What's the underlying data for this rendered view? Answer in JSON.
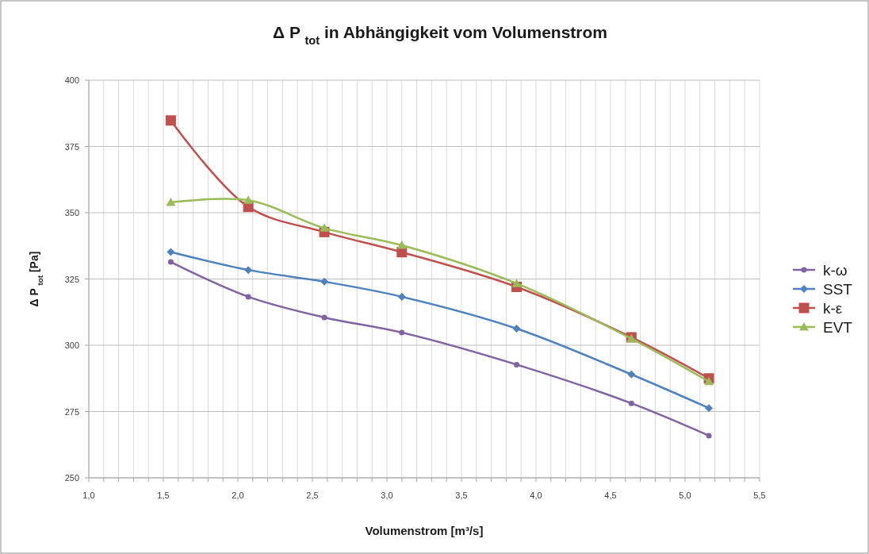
{
  "chart_data": {
    "type": "line",
    "title": "Δ P $_{tot}$ in Abhängigkeit vom Volumenstrom",
    "xlabel": "Volumenstrom  [m³/s]",
    "ylabel": "Δ P $_{tot}$  [Pa]",
    "x": [
      1.55,
      2.07,
      2.58,
      3.1,
      3.87,
      4.64,
      5.16
    ],
    "series": [
      {
        "name": "k-ω",
        "color": "#8064a2",
        "marker": "circle",
        "values": [
          331.4,
          318.3,
          310.5,
          304.8,
          292.7,
          278.1,
          265.9
        ]
      },
      {
        "name": "SST",
        "color": "#4f81bd",
        "marker": "diamond",
        "values": [
          335.2,
          328.4,
          324.0,
          318.3,
          306.3,
          289.0,
          276.3
        ]
      },
      {
        "name": "k-ε",
        "color": "#c0504d",
        "marker": "square",
        "values": [
          384.8,
          352.2,
          342.7,
          335.1,
          322.0,
          303.0,
          287.5
        ]
      },
      {
        "name": "EVT",
        "color": "#9bbb59",
        "marker": "triangle",
        "values": [
          353.9,
          354.7,
          344.2,
          337.7,
          323.3,
          302.5,
          286.3
        ]
      }
    ],
    "xlim": [
      1.0,
      5.5
    ],
    "xticks": [
      {
        "value": 1.0,
        "label": "1,0"
      },
      {
        "value": 1.1,
        "label": null
      },
      {
        "value": 1.2,
        "label": null
      },
      {
        "value": 1.3,
        "label": null
      },
      {
        "value": 1.4,
        "label": null
      },
      {
        "value": 1.5,
        "label": "1,5"
      },
      {
        "value": 1.6,
        "label": null
      },
      {
        "value": 1.7,
        "label": null
      },
      {
        "value": 1.8,
        "label": null
      },
      {
        "value": 1.9,
        "label": null
      },
      {
        "value": 2.0,
        "label": "2,0"
      },
      {
        "value": 2.1,
        "label": null
      },
      {
        "value": 2.2,
        "label": null
      },
      {
        "value": 2.3,
        "label": null
      },
      {
        "value": 2.4,
        "label": null
      },
      {
        "value": 2.5,
        "label": "2,5"
      },
      {
        "value": 2.6,
        "label": null
      },
      {
        "value": 2.7,
        "label": null
      },
      {
        "value": 2.8,
        "label": null
      },
      {
        "value": 2.9,
        "label": null
      },
      {
        "value": 3.0,
        "label": "3,0"
      },
      {
        "value": 3.1,
        "label": null
      },
      {
        "value": 3.2,
        "label": null
      },
      {
        "value": 3.3,
        "label": null
      },
      {
        "value": 3.4,
        "label": null
      },
      {
        "value": 3.5,
        "label": "3,5"
      },
      {
        "value": 3.6,
        "label": null
      },
      {
        "value": 3.7,
        "label": null
      },
      {
        "value": 3.8,
        "label": null
      },
      {
        "value": 3.9,
        "label": null
      },
      {
        "value": 4.0,
        "label": "4,0"
      },
      {
        "value": 4.1,
        "label": null
      },
      {
        "value": 4.2,
        "label": null
      },
      {
        "value": 4.3,
        "label": null
      },
      {
        "value": 4.4,
        "label": null
      },
      {
        "value": 4.5,
        "label": "4,5"
      },
      {
        "value": 4.6,
        "label": null
      },
      {
        "value": 4.7,
        "label": null
      },
      {
        "value": 4.8,
        "label": null
      },
      {
        "value": 4.9,
        "label": null
      },
      {
        "value": 5.0,
        "label": "5,0"
      },
      {
        "value": 5.1,
        "label": null
      },
      {
        "value": 5.2,
        "label": null
      },
      {
        "value": 5.3,
        "label": null
      },
      {
        "value": 5.4,
        "label": null
      },
      {
        "value": 5.5,
        "label": "5,5"
      }
    ],
    "ylim": [
      250,
      400
    ],
    "yticks": [
      250,
      275,
      300,
      325,
      350,
      375,
      400
    ],
    "grid": true,
    "legend": "right"
  }
}
